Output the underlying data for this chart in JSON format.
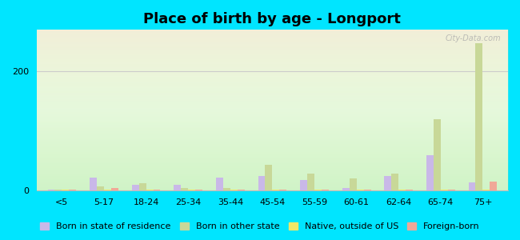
{
  "title": "Place of birth by age - Longport",
  "background_color": "#00e5ff",
  "categories": [
    "<5",
    "5-17",
    "18-24",
    "25-34",
    "35-44",
    "45-54",
    "55-59",
    "60-61",
    "62-64",
    "65-74",
    "75+"
  ],
  "series": {
    "Born in state of residence": {
      "color": "#c9b8e8",
      "values": [
        2,
        22,
        10,
        10,
        22,
        25,
        18,
        4,
        25,
        60,
        14
      ]
    },
    "Born in other state": {
      "color": "#c8d898",
      "values": [
        2,
        7,
        13,
        4,
        5,
        43,
        28,
        20,
        28,
        120,
        248
      ]
    },
    "Native, outside of US": {
      "color": "#f0e868",
      "values": [
        2,
        2,
        2,
        2,
        2,
        2,
        2,
        2,
        2,
        2,
        2
      ]
    },
    "Foreign-born": {
      "color": "#f0a898",
      "values": [
        2,
        4,
        2,
        2,
        2,
        2,
        2,
        2,
        2,
        2,
        15
      ]
    }
  },
  "ylim": [
    0,
    270
  ],
  "yticks": [
    0,
    200
  ],
  "bar_width": 0.17,
  "title_fontsize": 13,
  "tick_fontsize": 8,
  "legend_fontsize": 8,
  "watermark": "City-Data.com"
}
